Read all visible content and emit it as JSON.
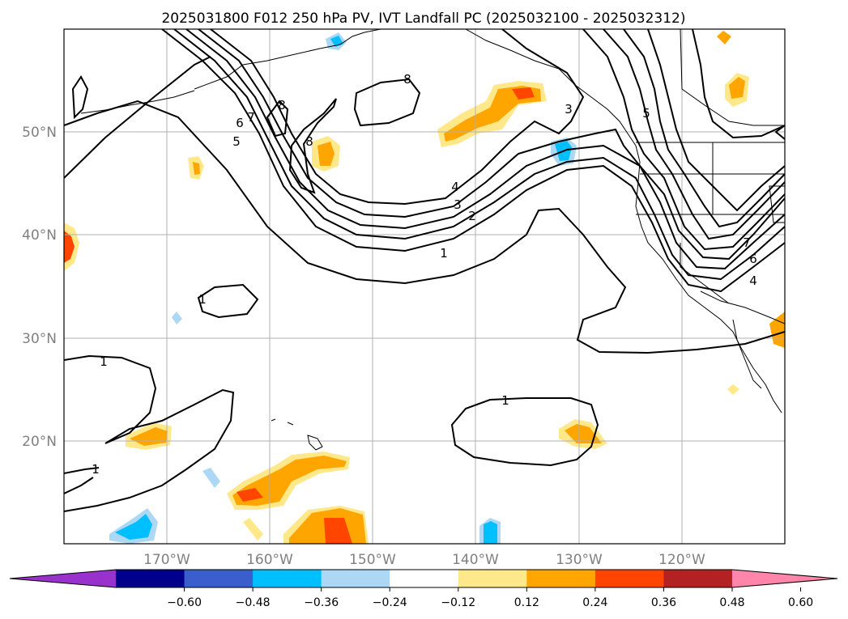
{
  "chart_data": {
    "type": "contour-map",
    "title": "2025031800 F012 250 hPa PV, IVT Landfall PC (2025032100 - 2025032312)",
    "lon_range": [
      -180,
      -110
    ],
    "lat_range": [
      10,
      60
    ],
    "lat_ticks": [
      "50°N",
      "40°N",
      "30°N",
      "20°N"
    ],
    "lat_tick_values": [
      50,
      40,
      30,
      20
    ],
    "lon_ticks": [
      "170°W",
      "160°W",
      "150°W",
      "140°W",
      "130°W",
      "120°W"
    ],
    "lon_tick_values": [
      -170,
      -160,
      -150,
      -140,
      -130,
      -120
    ],
    "grid": true,
    "colorbar": {
      "ticks": [
        "−0.60",
        "−0.48",
        "−0.36",
        "−0.24",
        "−0.12",
        "0.12",
        "0.24",
        "0.36",
        "0.48",
        "0.60"
      ],
      "colors": [
        "#9932cc",
        "#00008b",
        "#3a5fcd",
        "#00bfff",
        "#add8f5",
        "#ffffff",
        "#ffe88a",
        "#ffa500",
        "#ff4500",
        "#b22222",
        "#ff85aa"
      ],
      "extend": "both"
    },
    "pv_contour_levels": [
      1,
      2,
      3,
      4,
      5,
      6,
      7,
      8
    ],
    "contour_labels": [
      "1",
      "1",
      "1",
      "1",
      "2",
      "3",
      "4",
      "5",
      "6",
      "7",
      "8",
      "8",
      "8",
      "3",
      "5",
      "7",
      "6",
      "4",
      "1"
    ]
  }
}
